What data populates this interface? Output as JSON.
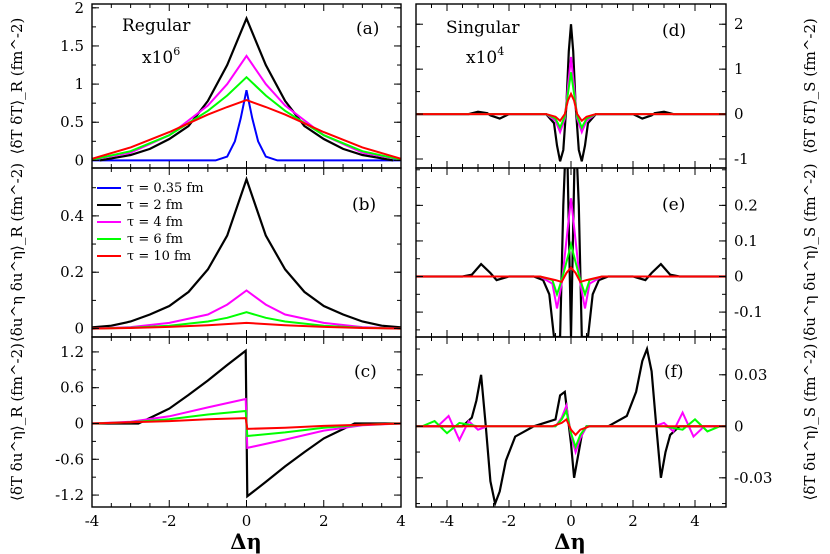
{
  "colors": {
    "tau_0_35": "#0000ff",
    "tau_2": "#000000",
    "tau_4": "#ff00ff",
    "tau_6": "#00ff00",
    "tau_10": "#ff0000"
  },
  "shared": {
    "xlabel": "Δη",
    "column_titles": {
      "regular": "Regular",
      "singular": "Singular"
    },
    "scale_notes": {
      "regular": "x10",
      "regular_exp": "6",
      "singular": "x10",
      "singular_exp": "4"
    }
  },
  "legend": {
    "placement": "panel (b), top-left",
    "entries": [
      {
        "label": "τ = 0.35 fm",
        "color": "#0000ff"
      },
      {
        "label": "τ = 2 fm",
        "color": "#000000"
      },
      {
        "label": "τ = 4 fm",
        "color": "#ff00ff"
      },
      {
        "label": "τ = 6 fm",
        "color": "#00ff00"
      },
      {
        "label": "τ = 10 fm",
        "color": "#ff0000"
      }
    ]
  },
  "chart_data": [
    {
      "panel": "(a)",
      "type": "line",
      "ylabel": "⟨δT δT⟩_R (fm^-2)",
      "yaxis_side": "left",
      "xlim": [
        -4,
        4
      ],
      "ylim": [
        -0.1,
        2.05
      ],
      "xticks": [
        -4,
        -2,
        0,
        2,
        4
      ],
      "yticks": [
        0,
        0.5,
        1,
        1.5,
        2
      ],
      "ytick_labels": [
        "0",
        "0.5",
        "1",
        "1.5",
        "2"
      ],
      "series": [
        {
          "name": "τ = 0.35 fm",
          "x": [
            -4,
            -0.8,
            -0.5,
            -0.3,
            -0.15,
            0,
            0.15,
            0.3,
            0.5,
            0.8,
            4
          ],
          "y": [
            0,
            0,
            0.05,
            0.25,
            0.55,
            0.92,
            0.55,
            0.25,
            0.05,
            0,
            0
          ]
        },
        {
          "name": "τ = 2 fm",
          "x": [
            -3.8,
            -3,
            -2.5,
            -2,
            -1.5,
            -1,
            -0.5,
            0,
            0.5,
            1,
            1.5,
            2,
            2.5,
            3,
            3.8
          ],
          "y": [
            0,
            0.07,
            0.15,
            0.28,
            0.45,
            0.78,
            1.25,
            1.86,
            1.25,
            0.78,
            0.45,
            0.28,
            0.15,
            0.07,
            0
          ]
        },
        {
          "name": "τ = 4 fm",
          "x": [
            -4,
            -3,
            -2,
            -1,
            -0.5,
            0,
            0.5,
            1,
            2,
            3,
            4
          ],
          "y": [
            0.01,
            0.1,
            0.33,
            0.72,
            1.0,
            1.37,
            1.0,
            0.72,
            0.33,
            0.1,
            0.01
          ]
        },
        {
          "name": "τ = 6 fm",
          "x": [
            -4,
            -3,
            -2,
            -1,
            -0.5,
            0,
            0.5,
            1,
            2,
            3,
            4
          ],
          "y": [
            0.01,
            0.12,
            0.33,
            0.65,
            0.85,
            1.09,
            0.85,
            0.65,
            0.33,
            0.12,
            0.01
          ]
        },
        {
          "name": "τ = 10 fm",
          "x": [
            -4,
            -3,
            -2,
            -1,
            -0.5,
            0,
            0.5,
            1,
            2,
            3,
            4
          ],
          "y": [
            0.02,
            0.17,
            0.37,
            0.6,
            0.7,
            0.79,
            0.7,
            0.6,
            0.37,
            0.17,
            0.02
          ]
        }
      ]
    },
    {
      "panel": "(b)",
      "type": "line",
      "ylabel": "⟨δu^η δu^η⟩_R (fm^-2)",
      "yaxis_side": "left",
      "xlim": [
        -4,
        4
      ],
      "ylim": [
        -0.03,
        0.57
      ],
      "xticks": [
        -4,
        -2,
        0,
        2,
        4
      ],
      "yticks": [
        0,
        0.2,
        0.4
      ],
      "ytick_labels": [
        "0",
        "0.2",
        "0.4"
      ],
      "series": [
        {
          "name": "τ = 2 fm",
          "x": [
            -4,
            -3.5,
            -3,
            -2.5,
            -2,
            -1.5,
            -1,
            -0.5,
            0,
            0.5,
            1,
            1.5,
            2,
            2.5,
            3,
            3.5,
            4
          ],
          "y": [
            0.004,
            0.01,
            0.025,
            0.05,
            0.08,
            0.13,
            0.21,
            0.33,
            0.53,
            0.33,
            0.21,
            0.13,
            0.08,
            0.05,
            0.025,
            0.01,
            0.004
          ]
        },
        {
          "name": "τ = 4 fm",
          "x": [
            -4,
            -3,
            -2,
            -1,
            -0.5,
            0,
            0.5,
            1,
            2,
            3,
            4
          ],
          "y": [
            0,
            0.005,
            0.02,
            0.05,
            0.085,
            0.135,
            0.085,
            0.05,
            0.02,
            0.005,
            0
          ]
        },
        {
          "name": "τ = 6 fm",
          "x": [
            -4,
            -3,
            -2,
            -1,
            -0.5,
            0,
            0.5,
            1,
            2,
            3,
            4
          ],
          "y": [
            0,
            0.003,
            0.01,
            0.025,
            0.038,
            0.058,
            0.038,
            0.025,
            0.01,
            0.003,
            0
          ]
        },
        {
          "name": "τ = 10 fm",
          "x": [
            -4,
            -3,
            -2,
            -1,
            0,
            1,
            2,
            3,
            4
          ],
          "y": [
            0,
            0.002,
            0.006,
            0.012,
            0.02,
            0.012,
            0.006,
            0.002,
            0
          ]
        }
      ]
    },
    {
      "panel": "(c)",
      "type": "line",
      "ylabel": "⟨δT δu^η⟩_R (fm^-2)",
      "yaxis_side": "left",
      "xlim": [
        -4,
        4
      ],
      "ylim": [
        -1.4,
        1.45
      ],
      "xticks": [
        -4,
        -2,
        0,
        2,
        4
      ],
      "yticks": [
        -1.2,
        -0.6,
        0,
        0.6,
        1.2
      ],
      "ytick_labels": [
        "-1.2",
        "-0.6",
        "0",
        "0.6",
        "1.2"
      ],
      "series": [
        {
          "name": "τ = 2 fm",
          "x": [
            -4,
            -3.5,
            -2.8,
            -2,
            -1.5,
            -1,
            -0.5,
            -0.02,
            0.02,
            0.5,
            1,
            1.5,
            2,
            2.8,
            3.5,
            4
          ],
          "y": [
            0,
            0,
            0,
            0.25,
            0.48,
            0.72,
            0.98,
            1.22,
            -1.22,
            -0.98,
            -0.72,
            -0.48,
            -0.25,
            0,
            0,
            0
          ]
        },
        {
          "name": "τ = 4 fm",
          "x": [
            -4,
            -3,
            -2,
            -1,
            -0.02,
            0.02,
            1,
            2,
            3,
            4
          ],
          "y": [
            0,
            0.03,
            0.12,
            0.27,
            0.41,
            -0.41,
            -0.27,
            -0.12,
            -0.03,
            0
          ]
        },
        {
          "name": "τ = 6 fm",
          "x": [
            -4,
            -3,
            -2,
            -1,
            -0.02,
            0.02,
            1,
            2,
            3,
            4
          ],
          "y": [
            0,
            0.02,
            0.07,
            0.15,
            0.21,
            -0.21,
            -0.15,
            -0.07,
            -0.02,
            0
          ]
        },
        {
          "name": "τ = 10 fm",
          "x": [
            -4,
            -3,
            -2,
            -1,
            -0.02,
            0.02,
            1,
            2,
            3,
            4
          ],
          "y": [
            0,
            0.02,
            0.04,
            0.07,
            0.09,
            -0.09,
            -0.07,
            -0.04,
            -0.02,
            0
          ]
        }
      ]
    },
    {
      "panel": "(d)",
      "type": "line",
      "ylabel": "⟨δT δT⟩_S (fm^-2)",
      "yaxis_side": "right",
      "xlim": [
        -5,
        5
      ],
      "ylim": [
        -1.2,
        2.45
      ],
      "xticks": [
        -4,
        -2,
        0,
        2,
        4
      ],
      "yticks": [
        -1,
        0,
        1,
        2
      ],
      "ytick_labels": [
        "-1",
        "0",
        "1",
        "2"
      ],
      "series": [
        {
          "name": "τ = 2 fm",
          "x": [
            -5,
            -3.3,
            -3,
            -2.7,
            -2.6,
            -2.3,
            -2,
            -0.8,
            -0.55,
            -0.45,
            -0.35,
            -0.25,
            -0.15,
            -0.07,
            0,
            0.07,
            0.15,
            0.25,
            0.35,
            0.45,
            0.55,
            0.8,
            2,
            2.3,
            2.6,
            2.7,
            3,
            3.3,
            5
          ],
          "y": [
            0,
            0,
            0.05,
            0.02,
            -0.03,
            -0.1,
            0,
            0,
            -0.2,
            -0.7,
            -1.05,
            -0.8,
            0.2,
            1.4,
            2.0,
            1.4,
            0.2,
            -0.8,
            -1.05,
            -0.7,
            -0.2,
            0,
            0,
            -0.1,
            -0.03,
            0.02,
            0.05,
            0,
            0
          ]
        },
        {
          "name": "τ = 4 fm",
          "x": [
            -5,
            -0.8,
            -0.5,
            -0.35,
            -0.2,
            -0.1,
            0,
            0.1,
            0.2,
            0.35,
            0.5,
            0.8,
            5
          ],
          "y": [
            0,
            0,
            -0.15,
            -0.4,
            -0.1,
            0.6,
            1.27,
            0.6,
            -0.1,
            -0.4,
            -0.15,
            0,
            0
          ]
        },
        {
          "name": "τ = 6 fm",
          "x": [
            -5,
            -0.8,
            -0.5,
            -0.35,
            -0.2,
            -0.1,
            0,
            0.1,
            0.2,
            0.35,
            0.5,
            0.8,
            5
          ],
          "y": [
            0,
            0,
            -0.1,
            -0.3,
            -0.05,
            0.45,
            0.93,
            0.45,
            -0.05,
            -0.3,
            -0.1,
            0,
            0
          ]
        },
        {
          "name": "τ = 10 fm",
          "x": [
            -5,
            -0.8,
            -0.5,
            -0.35,
            -0.2,
            -0.1,
            0,
            0.1,
            0.2,
            0.35,
            0.5,
            0.8,
            5
          ],
          "y": [
            0,
            0,
            -0.06,
            -0.15,
            0,
            0.3,
            0.45,
            0.3,
            0,
            -0.15,
            -0.06,
            0,
            0
          ]
        }
      ]
    },
    {
      "panel": "(e)",
      "type": "line",
      "ylabel": "⟨δu^η δu^η⟩_S (fm^-2)",
      "yaxis_side": "right",
      "xlim": [
        -5,
        5
      ],
      "ylim": [
        -0.17,
        0.305
      ],
      "xticks": [
        -4,
        -2,
        0,
        2,
        4
      ],
      "yticks": [
        -0.1,
        0,
        0.1,
        0.2
      ],
      "ytick_labels": [
        "-0.1",
        "0",
        "0.1",
        "0.2"
      ],
      "series": [
        {
          "name": "τ = 2 fm",
          "x": [
            -5,
            -3.5,
            -3.2,
            -2.9,
            -2.6,
            -2.4,
            -2,
            -1.2,
            -0.9,
            -0.7,
            -0.55,
            -0.45,
            -0.35,
            -0.25,
            -0.18,
            -0.12,
            -0.06,
            0,
            0.06,
            0.12,
            0.18,
            0.25,
            0.35,
            0.45,
            0.55,
            0.7,
            0.9,
            1.2,
            2,
            2.4,
            2.6,
            2.9,
            3.2,
            3.5,
            5
          ],
          "y": [
            0,
            0,
            0.005,
            0.035,
            0.01,
            -0.01,
            0,
            0,
            -0.01,
            -0.05,
            -0.17,
            -0.17,
            -0.17,
            0.2,
            0.35,
            0.35,
            0.1,
            -0.17,
            0.1,
            0.35,
            0.35,
            0.2,
            -0.17,
            -0.17,
            -0.17,
            -0.05,
            -0.01,
            0,
            0,
            -0.01,
            0.01,
            0.035,
            0.005,
            0,
            0
          ]
        },
        {
          "name": "τ = 4 fm",
          "x": [
            -5,
            -1,
            -0.6,
            -0.45,
            -0.3,
            -0.15,
            0,
            0.15,
            0.3,
            0.45,
            0.6,
            1,
            5
          ],
          "y": [
            0,
            0,
            -0.02,
            -0.09,
            -0.02,
            0.1,
            0.22,
            0.1,
            -0.02,
            -0.09,
            -0.02,
            0,
            0
          ]
        },
        {
          "name": "τ = 6 fm",
          "x": [
            -5,
            -1,
            -0.6,
            -0.45,
            -0.3,
            -0.15,
            0,
            0.15,
            0.3,
            0.45,
            0.6,
            1,
            5
          ],
          "y": [
            0,
            0,
            -0.01,
            -0.05,
            -0.01,
            0.04,
            0.09,
            0.04,
            -0.01,
            -0.05,
            -0.01,
            0,
            0
          ]
        },
        {
          "name": "τ = 10 fm",
          "x": [
            -5,
            -1,
            -0.5,
            -0.3,
            -0.15,
            0,
            0.15,
            0.3,
            0.5,
            1,
            5
          ],
          "y": [
            0,
            0,
            -0.01,
            -0.015,
            0.01,
            0.025,
            0.01,
            -0.015,
            -0.01,
            0,
            0
          ]
        }
      ]
    },
    {
      "panel": "(f)",
      "type": "line",
      "ylabel": "⟨δT δu^η⟩_S (fm^-2)",
      "yaxis_side": "right",
      "xlim": [
        -5,
        5
      ],
      "ylim": [
        -0.047,
        0.052
      ],
      "xticks": [
        -4,
        -2,
        0,
        2,
        4
      ],
      "yticks": [
        -0.03,
        0,
        0.03
      ],
      "ytick_labels": [
        "-0.03",
        "0",
        "0.03"
      ],
      "series": [
        {
          "name": "τ = 2 fm",
          "x": [
            -5,
            -3.5,
            -3.2,
            -3.05,
            -2.9,
            -2.75,
            -2.6,
            -2.45,
            -2.3,
            -2.1,
            -1.8,
            -1.2,
            -0.5,
            -0.35,
            -0.2,
            -0.1,
            0,
            0.1,
            0.2,
            0.35,
            0.5,
            1.2,
            1.8,
            2.1,
            2.3,
            2.45,
            2.6,
            2.75,
            2.9,
            3.05,
            3.2,
            3.5,
            5
          ],
          "y": [
            0,
            0,
            0.005,
            0.015,
            0.03,
            0.0,
            -0.032,
            -0.045,
            -0.038,
            -0.02,
            -0.006,
            0,
            0.004,
            0.018,
            0.02,
            0.005,
            -0.01,
            -0.03,
            -0.02,
            -0.005,
            0,
            0,
            0.006,
            0.02,
            0.038,
            0.045,
            0.032,
            0,
            -0.03,
            -0.015,
            -0.005,
            0,
            0
          ]
        },
        {
          "name": "τ = 4 fm",
          "x": [
            -5,
            -4.3,
            -3.95,
            -3.6,
            -3.3,
            -3,
            -2.7,
            -0.5,
            -0.3,
            -0.15,
            0,
            0.15,
            0.3,
            0.5,
            2.7,
            3,
            3.3,
            3.6,
            3.95,
            4.3,
            5
          ],
          "y": [
            0,
            0,
            0.006,
            -0.008,
            0.003,
            -0.002,
            0,
            0,
            0.005,
            0.012,
            -0.005,
            -0.015,
            -0.007,
            0,
            0,
            0.002,
            -0.003,
            0.008,
            -0.006,
            0,
            0
          ]
        },
        {
          "name": "τ = 6 fm",
          "x": [
            -5,
            -4.8,
            -4.4,
            -4,
            -3.6,
            -3,
            -0.5,
            -0.3,
            -0.15,
            0,
            0.15,
            0.3,
            0.5,
            3,
            3.6,
            4,
            4.4,
            4.8,
            5
          ],
          "y": [
            0,
            0,
            0.003,
            -0.004,
            0.002,
            0,
            0,
            0.004,
            0.009,
            -0.004,
            -0.012,
            -0.005,
            0,
            0,
            -0.002,
            0.004,
            -0.003,
            0,
            0
          ]
        },
        {
          "name": "τ = 10 fm",
          "x": [
            -5,
            -0.6,
            -0.3,
            -0.15,
            0,
            0.15,
            0.3,
            0.6,
            5
          ],
          "y": [
            0,
            0,
            0.002,
            0.004,
            -0.002,
            -0.005,
            -0.002,
            0,
            0
          ]
        }
      ]
    }
  ]
}
